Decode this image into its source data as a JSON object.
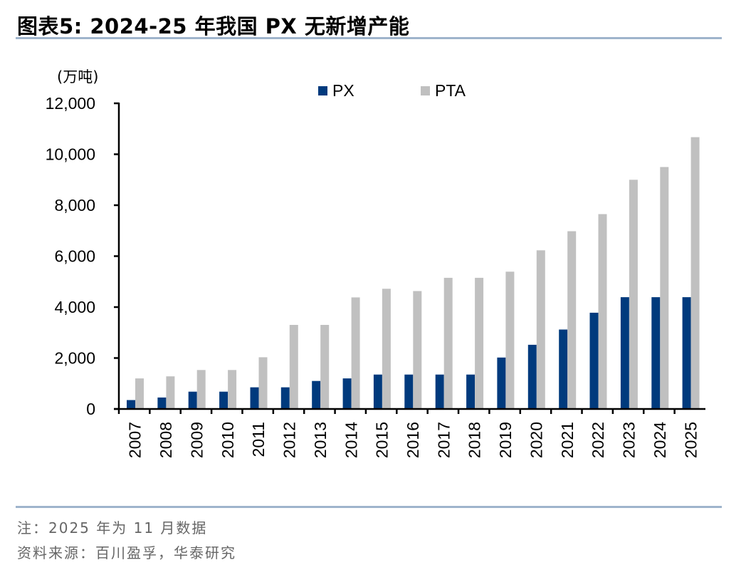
{
  "header": {
    "title": "图表5:  2024-25 年我国 PX 无新增产能"
  },
  "footer": {
    "note": "注：2025 年为 11 月数据",
    "source": "资料来源：百川盈孚，华泰研究"
  },
  "colors": {
    "px": "#003a7d",
    "pta": "#c0c0c0",
    "rule": "#9fb4cc"
  },
  "chart_data": {
    "type": "bar",
    "title": "2024-25 年我国 PX 无新增产能",
    "unit_label": "(万吨)",
    "xlabel": "",
    "ylabel": "(万吨)",
    "ylim": [
      0,
      12000
    ],
    "yticks": [
      0,
      2000,
      4000,
      6000,
      8000,
      10000,
      12000
    ],
    "ytick_labels": [
      "0",
      "2,000",
      "4,000",
      "6,000",
      "8,000",
      "10,000",
      "12,000"
    ],
    "grid": false,
    "legend_position": "top-center",
    "categories": [
      "2007",
      "2008",
      "2009",
      "2010",
      "2011",
      "2012",
      "2013",
      "2014",
      "2015",
      "2016",
      "2017",
      "2018",
      "2019",
      "2020",
      "2021",
      "2022",
      "2023",
      "2024",
      "2025"
    ],
    "series": [
      {
        "name": "PX",
        "color": "#003a7d",
        "values": [
          350,
          450,
          680,
          680,
          850,
          850,
          1100,
          1200,
          1350,
          1350,
          1350,
          1350,
          2020,
          2520,
          3120,
          3780,
          4390,
          4390,
          4390
        ]
      },
      {
        "name": "PTA",
        "color": "#c0c0c0",
        "values": [
          1200,
          1280,
          1530,
          1530,
          2030,
          3300,
          3300,
          4380,
          4720,
          4630,
          5150,
          5150,
          5390,
          6230,
          6980,
          7650,
          9000,
          9500,
          10670
        ]
      }
    ]
  }
}
